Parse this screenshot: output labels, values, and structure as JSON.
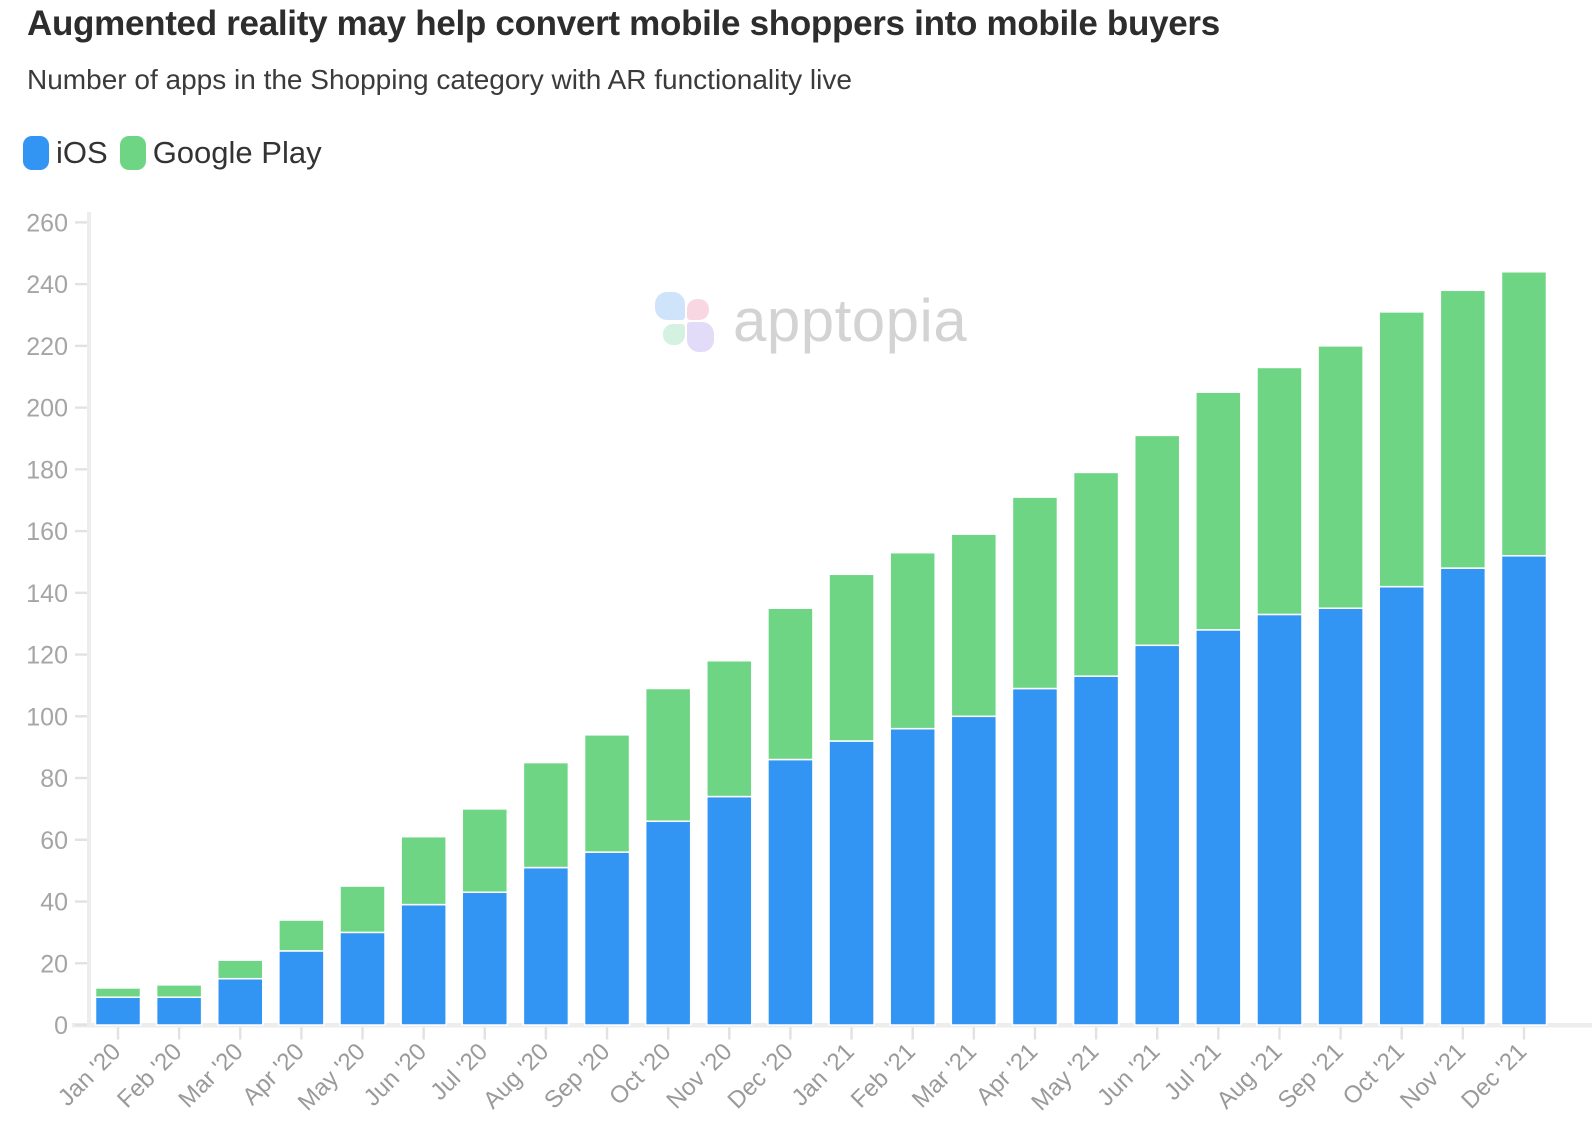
{
  "header": {
    "title": "Augmented reality may help convert mobile shoppers into mobile buyers",
    "subtitle": "Number of apps in the Shopping category with AR functionality live"
  },
  "legend": {
    "items": [
      {
        "label": "iOS",
        "color": "#3395f3"
      },
      {
        "label": "Google Play",
        "color": "#6ed584"
      }
    ]
  },
  "watermark": {
    "text": "apptopia",
    "text_color": "#d3d3d3",
    "petals": {
      "top_left": "#cfe4fb",
      "top_right": "#f8d7e3",
      "bottom_left": "#d5f1e1",
      "bottom_right": "#e3dcf8"
    }
  },
  "chart_data": {
    "type": "bar",
    "stacked": true,
    "title": "Augmented reality may help convert mobile shoppers into mobile buyers",
    "subtitle": "Number of apps in the Shopping category with AR functionality live",
    "xlabel": "",
    "ylabel": "",
    "ylim": [
      0,
      260
    ],
    "yticks": [
      0,
      20,
      40,
      60,
      80,
      100,
      120,
      140,
      160,
      180,
      200,
      220,
      240,
      260
    ],
    "grid": false,
    "legend_position": "top-left",
    "bar_stroke": "#ffffff",
    "categories": [
      "Jan '20",
      "Feb '20",
      "Mar '20",
      "Apr '20",
      "May '20",
      "Jun '20",
      "Jul '20",
      "Aug '20",
      "Sep '20",
      "Oct '20",
      "Nov '20",
      "Dec '20",
      "Jan '21",
      "Feb '21",
      "Mar '21",
      "Apr '21",
      "May '21",
      "Jun '21",
      "Jul '21",
      "Aug '21",
      "Sep '21",
      "Oct '21",
      "Nov '21",
      "Dec '21"
    ],
    "series": [
      {
        "name": "iOS",
        "color": "#3395f3",
        "values": [
          9,
          9,
          15,
          24,
          30,
          39,
          43,
          51,
          56,
          66,
          74,
          86,
          92,
          96,
          100,
          109,
          113,
          123,
          128,
          133,
          135,
          142,
          148,
          152
        ]
      },
      {
        "name": "Google Play",
        "color": "#6ed584",
        "values": [
          3,
          4,
          6,
          10,
          15,
          22,
          27,
          34,
          38,
          43,
          44,
          49,
          54,
          57,
          59,
          62,
          66,
          68,
          77,
          80,
          85,
          89,
          90,
          92
        ]
      }
    ],
    "totals": [
      12,
      13,
      21,
      34,
      45,
      61,
      70,
      85,
      94,
      109,
      118,
      135,
      146,
      153,
      159,
      171,
      179,
      191,
      205,
      213,
      220,
      231,
      238,
      244
    ]
  }
}
